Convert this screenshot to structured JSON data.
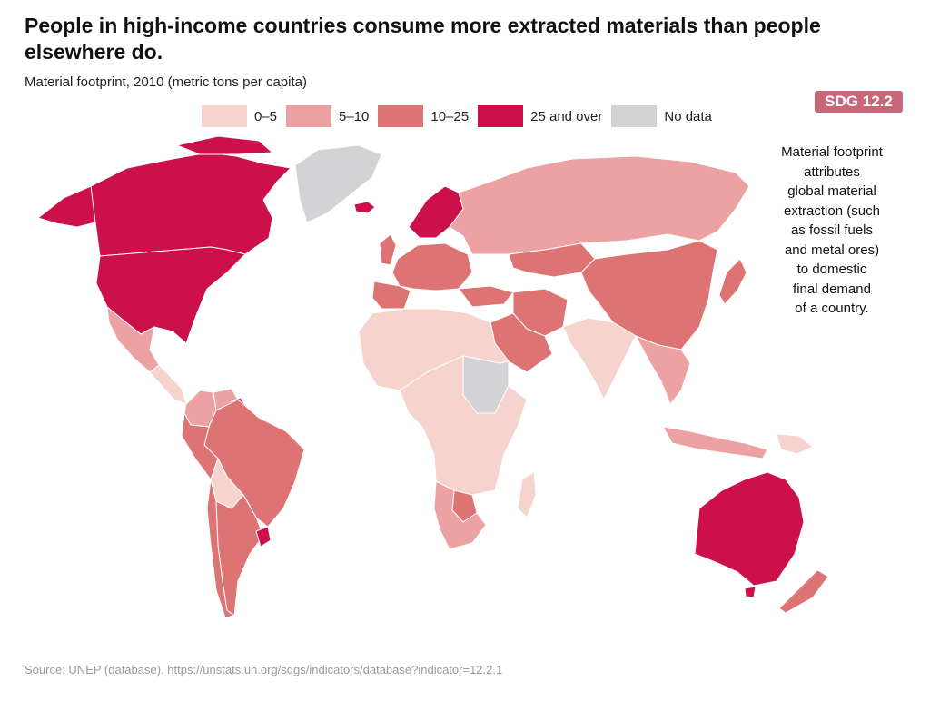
{
  "header": {
    "title": "People in high-income countries consume more extracted materials than people elsewhere do.",
    "subtitle": "Material footprint, 2010 (metric tons per capita)",
    "badge": "SDG 12.2"
  },
  "legend": {
    "items": [
      {
        "label": "0–5",
        "color": "#f6d3cd"
      },
      {
        "label": "5–10",
        "color": "#eca2a2"
      },
      {
        "label": "10–25",
        "color": "#de7373"
      },
      {
        "label": "25 and over",
        "color": "#cc1049"
      },
      {
        "label": "No data",
        "color": "#d3d3d5"
      }
    ]
  },
  "note": "Material footprint\nattributes\nglobal material\nextraction (such\nas fossil fuels\nand metal ores)\nto domestic\nfinal demand\nof a country.",
  "source": "Source: UNEP (database). https://unstats.un.org/sdgs/indicators/database?indicator=12.2.1",
  "colors": {
    "c0_5": "#f6d3cd",
    "c5_10": "#eca2a2",
    "c10_25": "#de7373",
    "c25": "#cc1049",
    "nodata": "#d3d3d5",
    "badge": "#c8667a",
    "border": "#ffffff"
  },
  "map_regions": [
    {
      "name": "canada",
      "category": "25 and over"
    },
    {
      "name": "united-states",
      "category": "25 and over"
    },
    {
      "name": "alaska",
      "category": "25 and over"
    },
    {
      "name": "greenland",
      "category": "No data"
    },
    {
      "name": "iceland",
      "category": "25 and over"
    },
    {
      "name": "mexico",
      "category": "5–10"
    },
    {
      "name": "central-america",
      "category": "0–5"
    },
    {
      "name": "colombia",
      "category": "5–10"
    },
    {
      "name": "venezuela",
      "category": "5–10"
    },
    {
      "name": "guyana",
      "category": "25 and over"
    },
    {
      "name": "brazil",
      "category": "10–25"
    },
    {
      "name": "peru",
      "category": "10–25"
    },
    {
      "name": "bolivia",
      "category": "0–5"
    },
    {
      "name": "chile",
      "category": "10–25"
    },
    {
      "name": "argentina",
      "category": "10–25"
    },
    {
      "name": "uruguay",
      "category": "25 and over"
    },
    {
      "name": "western-europe",
      "category": "10–25"
    },
    {
      "name": "scandinavia",
      "category": "25 and over"
    },
    {
      "name": "russia",
      "category": "5–10"
    },
    {
      "name": "kazakhstan",
      "category": "10–25"
    },
    {
      "name": "china",
      "category": "10–25"
    },
    {
      "name": "india",
      "category": "0–5"
    },
    {
      "name": "saudi-arabia",
      "category": "10–25"
    },
    {
      "name": "iran",
      "category": "10–25"
    },
    {
      "name": "north-africa",
      "category": "0–5"
    },
    {
      "name": "sudan",
      "category": "No data"
    },
    {
      "name": "central-africa",
      "category": "0–5"
    },
    {
      "name": "south-africa",
      "category": "5–10"
    },
    {
      "name": "botswana",
      "category": "10–25"
    },
    {
      "name": "madagascar",
      "category": "0–5"
    },
    {
      "name": "southeast-asia",
      "category": "5–10"
    },
    {
      "name": "indonesia",
      "category": "5–10"
    },
    {
      "name": "japan",
      "category": "10–25"
    },
    {
      "name": "australia",
      "category": "25 and over"
    },
    {
      "name": "new-zealand",
      "category": "10–25"
    },
    {
      "name": "papua-new-guinea",
      "category": "0–5"
    }
  ]
}
